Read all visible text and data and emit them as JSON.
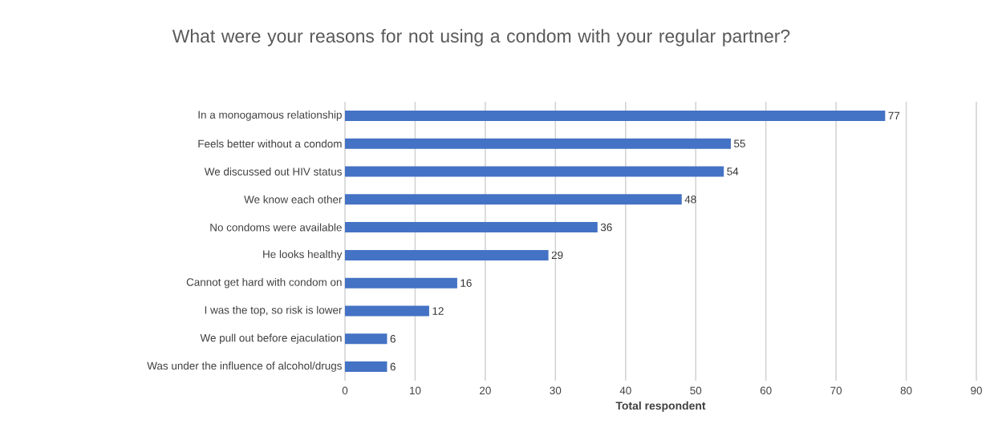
{
  "chart_data": {
    "type": "bar",
    "orientation": "horizontal",
    "title": "What were your reasons for not using a condom with your regular partner?",
    "xlabel": "Total respondent",
    "categories": [
      "In a monogamous relationship",
      "Feels better without a condom",
      "We discussed out HIV status",
      "We know each other",
      "No condoms were available",
      "He looks healthy",
      "Cannot get hard with condom on",
      "I was the top, so risk is lower",
      "We pull out before ejaculation",
      "Was under the influence of alcohol/drugs"
    ],
    "values": [
      77,
      55,
      54,
      48,
      36,
      29,
      16,
      12,
      6,
      6
    ],
    "color": "#4472c4",
    "xlim": [
      0,
      90
    ],
    "xticks": [
      0,
      10,
      20,
      30,
      40,
      50,
      60,
      70,
      80,
      90
    ],
    "grid": "x",
    "data_labels": true
  }
}
